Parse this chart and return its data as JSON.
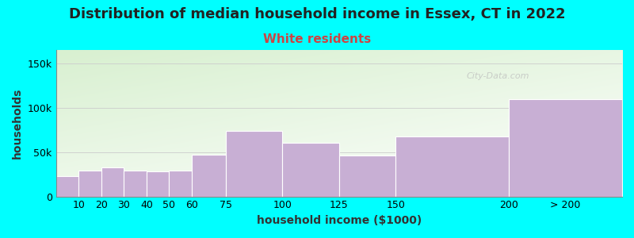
{
  "title": "Distribution of median household income in Essex, CT in 2022",
  "subtitle": "White residents",
  "xlabel": "household income ($1000)",
  "ylabel": "households",
  "background_color": "#00FFFF",
  "bar_color": "#c8afd4",
  "bar_edge_color": "#ffffff",
  "bin_edges": [
    0,
    10,
    20,
    30,
    40,
    50,
    60,
    75,
    100,
    125,
    150,
    200,
    250
  ],
  "bin_labels": [
    "10",
    "20",
    "30",
    "40",
    "50",
    "60",
    "75",
    "100",
    "125",
    "150",
    "200",
    "> 200"
  ],
  "values": [
    23000,
    29000,
    33000,
    29000,
    28000,
    29000,
    47000,
    74000,
    60000,
    46000,
    68000,
    110000
  ],
  "yticks": [
    0,
    50000,
    100000,
    150000
  ],
  "ytick_labels": [
    "0",
    "50k",
    "100k",
    "150k"
  ],
  "ylim": [
    0,
    165000
  ],
  "xlim_min": 0,
  "xlim_max": 250,
  "title_fontsize": 13,
  "subtitle_fontsize": 11,
  "subtitle_color": "#cc4444",
  "axis_label_fontsize": 10,
  "tick_fontsize": 9,
  "watermark": "City-Data.com"
}
